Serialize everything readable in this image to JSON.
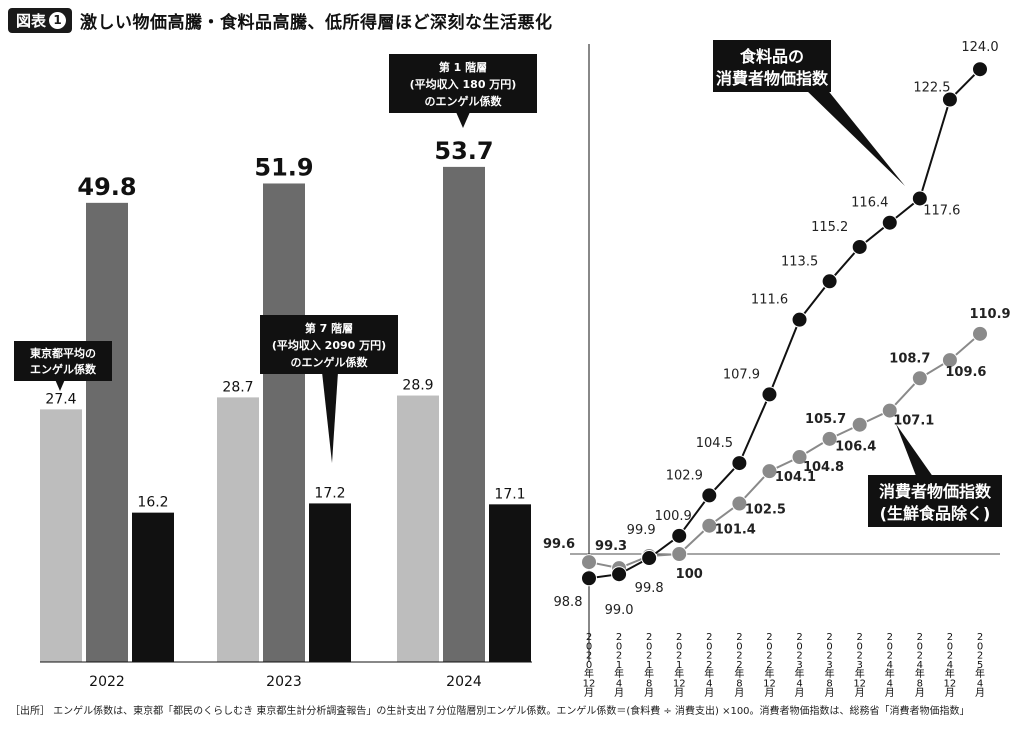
{
  "figure": {
    "label": "図表",
    "number": "1",
    "title": "激しい物価高騰・食料品高騰、低所得層ほど深刻な生活悪化"
  },
  "callouts": {
    "tokyo_avg": [
      "東京都平均の",
      "エンゲル係数"
    ],
    "tier1": [
      "第 1 階層",
      "(平均収入 180 万円)",
      "のエンゲル係数"
    ],
    "tier7": [
      "第 7 階層",
      "(平均収入 2090 万円)",
      "のエンゲル係数"
    ],
    "food_cpi": [
      "食料品の",
      "消費者物価指数"
    ],
    "core_cpi": [
      "消費者物価指数",
      "(生鮮食品除く)"
    ]
  },
  "footnote": "［出所］ エンゲル係数は、東京都「都民のくらしむき 東京都生計分析調査報告」の生計支出７分位階層別エンゲル係数。エンゲル係数＝(食料費 ÷ 消費支出) ×100。消費者物価指数は、総務省「消費者物価指数」",
  "chart_data": [
    {
      "type": "bar",
      "categories": [
        "2022",
        "2023",
        "2024"
      ],
      "series": [
        {
          "name": "東京都平均のエンゲル係数",
          "values": [
            27.4,
            28.7,
            28.9
          ],
          "color": "#bdbdbd"
        },
        {
          "name": "第 1 階層 (平均収入 180 万円) のエンゲル係数",
          "values": [
            49.8,
            51.9,
            53.7
          ],
          "color": "#6b6b6b"
        },
        {
          "name": "第 7 階層 (平均収入 2090 万円) のエンゲル係数",
          "values": [
            16.2,
            17.2,
            17.1
          ],
          "color": "#111111"
        }
      ],
      "ylim": [
        0,
        60
      ]
    },
    {
      "type": "line",
      "x": [
        "2020年12月",
        "2021年4月",
        "2021年8月",
        "2021年12月",
        "2022年4月",
        "2022年8月",
        "2022年12月",
        "2023年4月",
        "2023年8月",
        "2023年12月",
        "2024年4月",
        "2024年8月",
        "2024年12月",
        "2025年4月"
      ],
      "series": [
        {
          "name": "食料品の消費者物価指数",
          "values": [
            98.8,
            99.0,
            99.8,
            100.9,
            102.9,
            104.5,
            107.9,
            111.6,
            113.5,
            115.2,
            116.4,
            117.6,
            122.5,
            124.0
          ],
          "color": "#111111"
        },
        {
          "name": "消費者物価指数 (生鮮食品除く)",
          "values": [
            99.6,
            99.3,
            99.9,
            100,
            101.4,
            102.5,
            104.1,
            104.8,
            105.7,
            106.4,
            107.1,
            108.7,
            109.6,
            110.9
          ],
          "color": "#8a8a8a"
        }
      ],
      "baseline": 100,
      "ylim": [
        98,
        125
      ],
      "line_labels": {
        "food": [
          "98.8",
          "99.0",
          "99.8",
          "100.9",
          "102.9",
          "104.5",
          "107.9",
          "111.6",
          "113.5",
          "115.2",
          "116.4",
          "117.6",
          "122.5",
          "124.0"
        ],
        "core": [
          "99.6",
          "99.3",
          "99.9",
          "100",
          "101.4",
          "102.5",
          "104.1",
          "104.8",
          "105.7",
          "106.4",
          "107.1",
          "108.7",
          "109.6",
          "110.9"
        ]
      },
      "x_ticks": [
        [
          "2",
          "0",
          "2",
          "0",
          "年",
          "12",
          "月"
        ],
        [
          "2",
          "0",
          "2",
          "1",
          "年",
          "4",
          "月"
        ],
        [
          "2",
          "0",
          "2",
          "1",
          "年",
          "8",
          "月"
        ],
        [
          "2",
          "0",
          "2",
          "1",
          "年",
          "12",
          "月"
        ],
        [
          "2",
          "0",
          "2",
          "2",
          "年",
          "4",
          "月"
        ],
        [
          "2",
          "0",
          "2",
          "2",
          "年",
          "8",
          "月"
        ],
        [
          "2",
          "0",
          "2",
          "2",
          "年",
          "12",
          "月"
        ],
        [
          "2",
          "0",
          "2",
          "3",
          "年",
          "4",
          "月"
        ],
        [
          "2",
          "0",
          "2",
          "3",
          "年",
          "8",
          "月"
        ],
        [
          "2",
          "0",
          "2",
          "3",
          "年",
          "12",
          "月"
        ],
        [
          "2",
          "0",
          "2",
          "4",
          "年",
          "4",
          "月"
        ],
        [
          "2",
          "0",
          "2",
          "4",
          "年",
          "8",
          "月"
        ],
        [
          "2",
          "0",
          "2",
          "4",
          "年",
          "12",
          "月"
        ],
        [
          "2",
          "0",
          "2",
          "5",
          "年",
          "4",
          "月"
        ]
      ]
    }
  ]
}
